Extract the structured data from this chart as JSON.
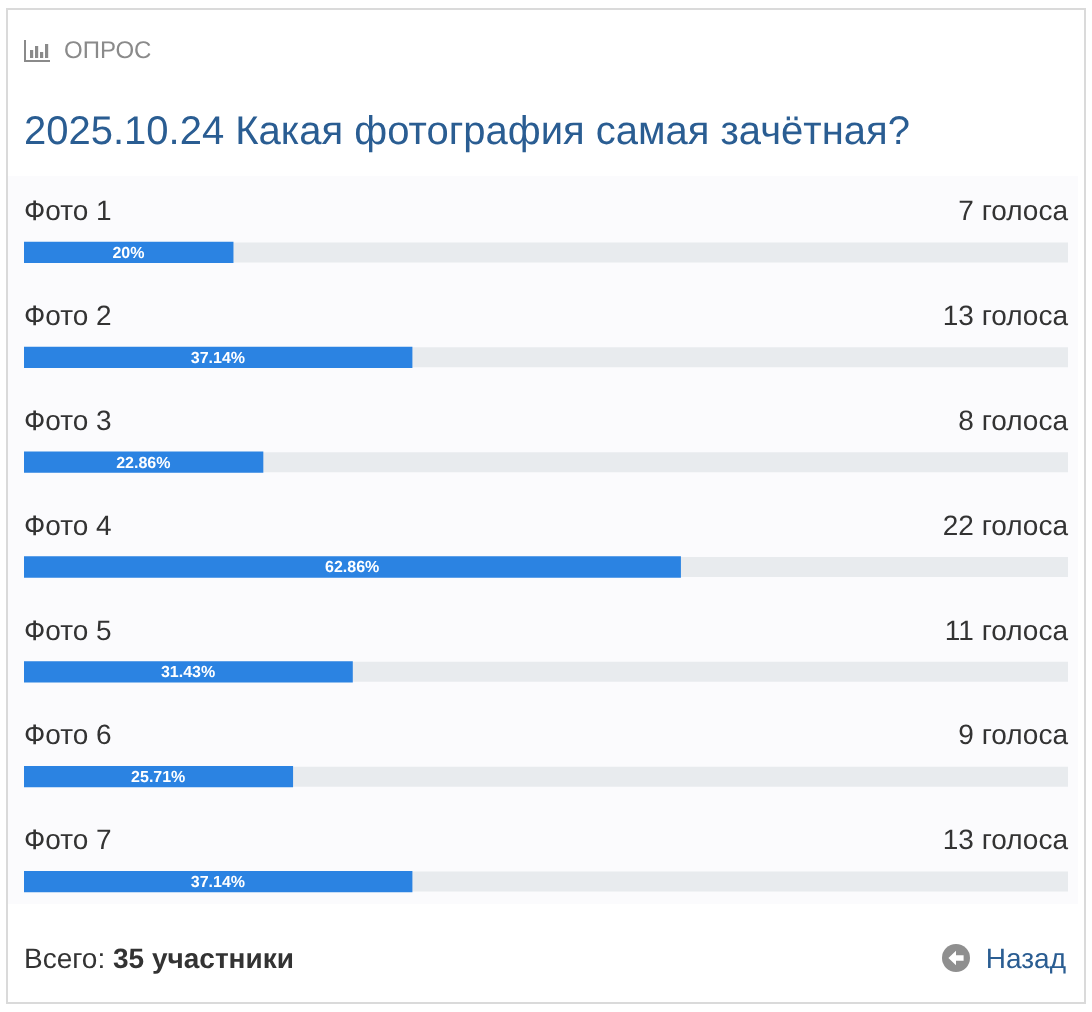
{
  "chart_data": {
    "type": "bar",
    "orientation": "horizontal",
    "title": "2025.10.24 Какая фотография самая зачётная?",
    "categories": [
      "Фото 1",
      "Фото 2",
      "Фото 3",
      "Фото 4",
      "Фото 5",
      "Фото 6",
      "Фото 7"
    ],
    "values": [
      20,
      37.14,
      22.86,
      62.86,
      31.43,
      25.71,
      37.14
    ],
    "color": "#2b83e2",
    "value_labels": [
      "20%",
      "37.14%",
      "22.86%",
      "62.86%",
      "31.43%",
      "25.71%",
      "37.14%"
    ],
    "xlim": [
      0,
      100
    ],
    "tick_labels": "y",
    "annotations": [
      "ОПРОС",
      "7 голоса",
      "13 голоса",
      "8 голоса",
      "22 голоса",
      "11 голоса",
      "9 голоса",
      "13 голоса",
      "Всего: 35 участники",
      "Назад"
    ]
  }
}
